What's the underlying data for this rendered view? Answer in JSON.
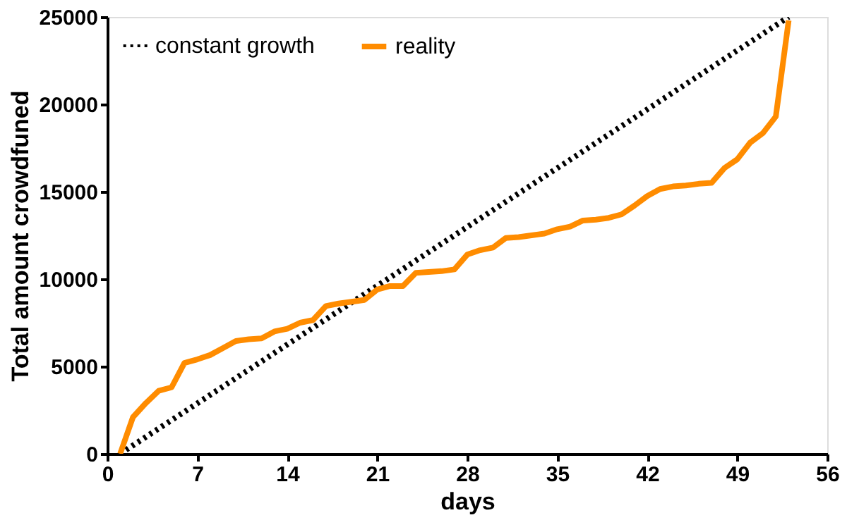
{
  "chart_data": {
    "type": "line",
    "xlabel": "days",
    "ylabel": "Total amount crowdfuned",
    "xlim": [
      0,
      56
    ],
    "xticks": [
      0,
      7,
      14,
      21,
      28,
      35,
      42,
      49,
      56
    ],
    "ylim": [
      0,
      25000
    ],
    "yticks": [
      0,
      5000,
      10000,
      15000,
      20000,
      25000
    ],
    "grid": false,
    "legend": "top left",
    "marker": "none",
    "series": [
      {
        "name": "constant growth",
        "color": "#000000",
        "line_style": "dotted",
        "x": [
          1,
          53
        ],
        "values": [
          0,
          25000
        ]
      },
      {
        "name": "reality",
        "color": "#ff8c00",
        "line_style": "solid",
        "x": [
          1,
          2,
          3,
          4,
          5,
          6,
          7,
          8,
          9,
          10,
          11,
          12,
          13,
          14,
          15,
          16,
          17,
          18,
          19,
          20,
          21,
          22,
          23,
          24,
          25,
          26,
          27,
          28,
          29,
          30,
          31,
          32,
          33,
          34,
          35,
          36,
          37,
          38,
          39,
          40,
          41,
          42,
          43,
          44,
          45,
          46,
          47,
          48,
          49,
          50,
          51,
          52,
          53
        ],
        "values": [
          0,
          2100,
          2900,
          3600,
          3800,
          5200,
          5400,
          5650,
          6050,
          6450,
          6550,
          6600,
          7000,
          7150,
          7500,
          7650,
          8450,
          8600,
          8700,
          8800,
          9400,
          9600,
          9600,
          10350,
          10400,
          10450,
          10550,
          11400,
          11650,
          11800,
          12350,
          12400,
          12500,
          12600,
          12850,
          13000,
          13350,
          13400,
          13500,
          13700,
          14200,
          14750,
          15150,
          15300,
          15350,
          15450,
          15500,
          16350,
          16850,
          17800,
          18350,
          19300,
          24800
        ]
      }
    ]
  }
}
